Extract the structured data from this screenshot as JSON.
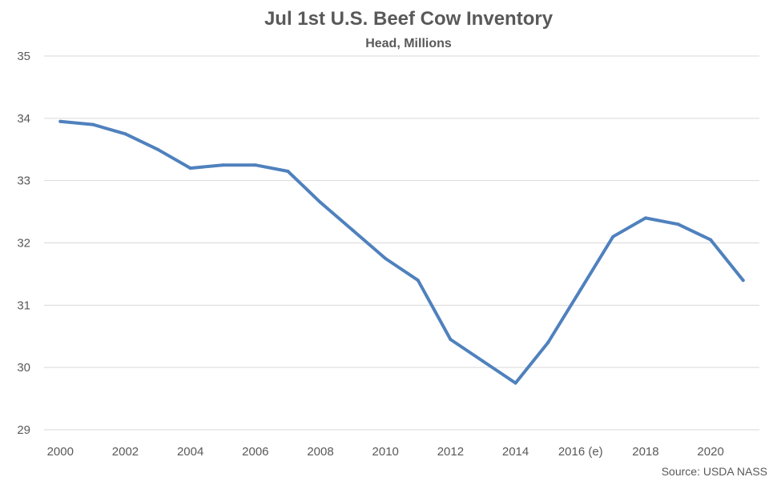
{
  "chart_data": {
    "type": "line",
    "title": "Jul 1st U.S. Beef Cow Inventory",
    "subtitle": "Head, Millions",
    "xlabel": "",
    "ylabel": "",
    "x": [
      2000,
      2001,
      2002,
      2003,
      2004,
      2005,
      2006,
      2007,
      2008,
      2009,
      2010,
      2011,
      2012,
      2013,
      2014,
      2015,
      2016,
      2017,
      2018,
      2019,
      2020,
      2021
    ],
    "x_tick_labels": [
      "2000",
      "2002",
      "2004",
      "2006",
      "2008",
      "2010",
      "2012",
      "2014",
      "2016 (e)",
      "2018",
      "2020"
    ],
    "y_tick_labels": [
      "29",
      "30",
      "31",
      "32",
      "33",
      "34",
      "35"
    ],
    "ylim": [
      29,
      35
    ],
    "grid": true,
    "series": [
      {
        "values": [
          33.95,
          33.9,
          33.75,
          33.5,
          33.2,
          33.25,
          33.25,
          33.15,
          32.65,
          32.2,
          31.75,
          31.4,
          30.45,
          30.1,
          29.75,
          30.4,
          31.25,
          32.1,
          32.4,
          32.3,
          32.05,
          31.4
        ]
      }
    ],
    "source": "Source: USDA NASS",
    "colors": {
      "series": "#4f81bd",
      "grid": "#d9d9d9",
      "text": "#595959"
    }
  }
}
